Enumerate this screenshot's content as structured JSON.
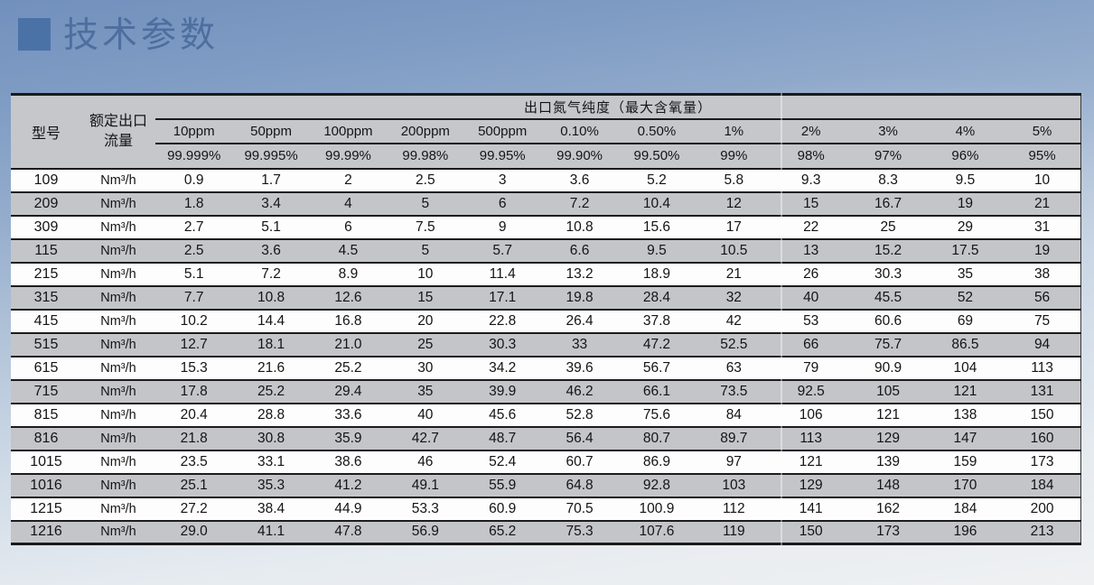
{
  "page": {
    "title": "技术参数"
  },
  "colors": {
    "accent": "#4a72a7",
    "title_color": "#4e6e9f",
    "header_gray": "#c6c7ca",
    "row_gray": "#c4c5c9",
    "row_white": "#fdfdfd",
    "line": "#1a1a1a",
    "sky_top": "#7290bc",
    "sky_bottom": "#eff1f2"
  },
  "table": {
    "col1_header": "型号",
    "col2_header_line1": "额定出口",
    "col2_header_line2": "流量",
    "span_header": "出口氮气纯度（最大含氧量）",
    "oxygen_levels": [
      "10ppm",
      "50ppm",
      "100ppm",
      "200ppm",
      "500ppm",
      "0.10%",
      "0.50%",
      "1%",
      "2%",
      "3%",
      "4%",
      "5%"
    ],
    "purity_levels": [
      "99.999%",
      "99.995%",
      "99.99%",
      "99.98%",
      "99.95%",
      "99.90%",
      "99.50%",
      "99%",
      "98%",
      "97%",
      "96%",
      "95%"
    ],
    "unit": "Nm³/h",
    "rows": [
      {
        "model": "109",
        "values": [
          "0.9",
          "1.7",
          "2",
          "2.5",
          "3",
          "3.6",
          "5.2",
          "5.8",
          "9.3",
          "8.3",
          "9.5",
          "10"
        ]
      },
      {
        "model": "209",
        "values": [
          "1.8",
          "3.4",
          "4",
          "5",
          "6",
          "7.2",
          "10.4",
          "12",
          "15",
          "16.7",
          "19",
          "21"
        ]
      },
      {
        "model": "309",
        "values": [
          "2.7",
          "5.1",
          "6",
          "7.5",
          "9",
          "10.8",
          "15.6",
          "17",
          "22",
          "25",
          "29",
          "31"
        ]
      },
      {
        "model": "115",
        "values": [
          "2.5",
          "3.6",
          "4.5",
          "5",
          "5.7",
          "6.6",
          "9.5",
          "10.5",
          "13",
          "15.2",
          "17.5",
          "19"
        ]
      },
      {
        "model": "215",
        "values": [
          "5.1",
          "7.2",
          "8.9",
          "10",
          "11.4",
          "13.2",
          "18.9",
          "21",
          "26",
          "30.3",
          "35",
          "38"
        ]
      },
      {
        "model": "315",
        "values": [
          "7.7",
          "10.8",
          "12.6",
          "15",
          "17.1",
          "19.8",
          "28.4",
          "32",
          "40",
          "45.5",
          "52",
          "56"
        ]
      },
      {
        "model": "415",
        "values": [
          "10.2",
          "14.4",
          "16.8",
          "20",
          "22.8",
          "26.4",
          "37.8",
          "42",
          "53",
          "60.6",
          "69",
          "75"
        ]
      },
      {
        "model": "515",
        "values": [
          "12.7",
          "18.1",
          "21.0",
          "25",
          "30.3",
          "33",
          "47.2",
          "52.5",
          "66",
          "75.7",
          "86.5",
          "94"
        ]
      },
      {
        "model": "615",
        "values": [
          "15.3",
          "21.6",
          "25.2",
          "30",
          "34.2",
          "39.6",
          "56.7",
          "63",
          "79",
          "90.9",
          "104",
          "113"
        ]
      },
      {
        "model": "715",
        "values": [
          "17.8",
          "25.2",
          "29.4",
          "35",
          "39.9",
          "46.2",
          "66.1",
          "73.5",
          "92.5",
          "105",
          "121",
          "131"
        ]
      },
      {
        "model": "815",
        "values": [
          "20.4",
          "28.8",
          "33.6",
          "40",
          "45.6",
          "52.8",
          "75.6",
          "84",
          "106",
          "121",
          "138",
          "150"
        ]
      },
      {
        "model": "816",
        "values": [
          "21.8",
          "30.8",
          "35.9",
          "42.7",
          "48.7",
          "56.4",
          "80.7",
          "89.7",
          "113",
          "129",
          "147",
          "160"
        ]
      },
      {
        "model": "1015",
        "values": [
          "23.5",
          "33.1",
          "38.6",
          "46",
          "52.4",
          "60.7",
          "86.9",
          "97",
          "121",
          "139",
          "159",
          "173"
        ]
      },
      {
        "model": "1016",
        "values": [
          "25.1",
          "35.3",
          "41.2",
          "49.1",
          "55.9",
          "64.8",
          "92.8",
          "103",
          "129",
          "148",
          "170",
          "184"
        ]
      },
      {
        "model": "1215",
        "values": [
          "27.2",
          "38.4",
          "44.9",
          "53.3",
          "60.9",
          "70.5",
          "100.9",
          "112",
          "141",
          "162",
          "184",
          "200"
        ]
      },
      {
        "model": "1216",
        "values": [
          "29.0",
          "41.1",
          "47.8",
          "56.9",
          "65.2",
          "75.3",
          "107.6",
          "119",
          "150",
          "173",
          "196",
          "213"
        ]
      }
    ]
  }
}
